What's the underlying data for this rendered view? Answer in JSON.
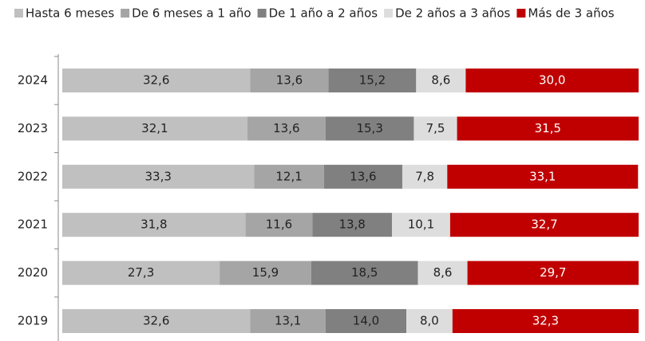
{
  "chart_data": {
    "type": "stacked-barh",
    "categories": [
      "2024",
      "2023",
      "2022",
      "2021",
      "2020",
      "2019"
    ],
    "xlim": [
      0,
      100
    ],
    "series": [
      {
        "name": "Hasta 6 meses",
        "color": "#c0c0c0",
        "values": [
          32.6,
          32.1,
          33.3,
          31.8,
          27.3,
          32.6
        ],
        "value_labels": [
          "32,6",
          "32,1",
          "33,3",
          "31,8",
          "27,3",
          "32,6"
        ]
      },
      {
        "name": "De 6 meses a 1 año",
        "color": "#a5a5a5",
        "values": [
          13.6,
          13.6,
          12.1,
          11.6,
          15.9,
          13.1
        ],
        "value_labels": [
          "13,6",
          "13,6",
          "12,1",
          "11,6",
          "15,9",
          "13,1"
        ]
      },
      {
        "name": "De 1 año a 2 años",
        "color": "#808080",
        "values": [
          15.2,
          15.3,
          13.6,
          13.8,
          18.5,
          14.0
        ],
        "value_labels": [
          "15,2",
          "15,3",
          "13,6",
          "13,8",
          "18,5",
          "14,0"
        ]
      },
      {
        "name": "De 2 años a 3 años",
        "color": "#dddddd",
        "values": [
          8.6,
          7.5,
          7.8,
          10.1,
          8.6,
          8.0
        ],
        "value_labels": [
          "8,6",
          "7,5",
          "7,8",
          "10,1",
          "8,6",
          "8,0"
        ]
      },
      {
        "name": "Más de 3 años",
        "color": "#c00000",
        "values": [
          30.0,
          31.5,
          33.1,
          32.7,
          29.7,
          32.3
        ],
        "value_labels": [
          "30,0",
          "31,5",
          "33,1",
          "32,7",
          "29,7",
          "32,3"
        ]
      }
    ]
  }
}
